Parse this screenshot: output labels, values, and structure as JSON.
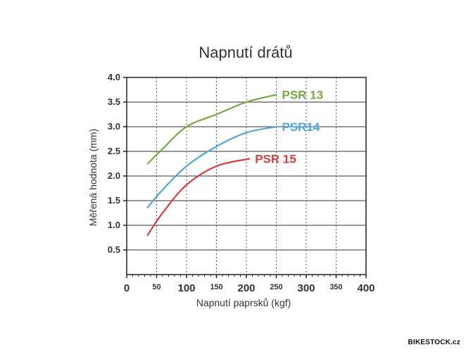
{
  "chart_data": {
    "type": "line",
    "title": "Napnutí drátů",
    "xlabel": "Napnutí paprsků (kgf)",
    "ylabel": "Měřená hodnota (mm)",
    "xlim": [
      0,
      400
    ],
    "ylim": [
      0,
      4.0
    ],
    "x_ticks": [
      0,
      50,
      100,
      150,
      200,
      250,
      300,
      350,
      400
    ],
    "x_tick_labels": [
      "0",
      "50",
      "100",
      "150",
      "200",
      "250",
      "300",
      "350",
      "400"
    ],
    "y_ticks": [
      0.5,
      1.0,
      1.5,
      2.0,
      2.5,
      3.0,
      3.5,
      4.0
    ],
    "y_tick_labels": [
      "0.5",
      "1.0",
      "1.5",
      "2.0",
      "2.5",
      "3.0",
      "3.5",
      "4.0"
    ],
    "grid": "dashed vertical every 50, solid horizontal every 0.5",
    "series": [
      {
        "name": "PSR 13",
        "color": "#73a93e",
        "x": [
          35,
          60,
          100,
          150,
          200,
          250
        ],
        "y": [
          2.25,
          2.55,
          3.0,
          3.25,
          3.5,
          3.65
        ]
      },
      {
        "name": "PSR14",
        "color": "#4fa7db",
        "x": [
          35,
          60,
          100,
          150,
          200,
          250
        ],
        "y": [
          1.36,
          1.72,
          2.2,
          2.6,
          2.88,
          3.0
        ]
      },
      {
        "name": "PSR 15",
        "color": "#d93c3c",
        "x": [
          35,
          60,
          100,
          150,
          205
        ],
        "y": [
          0.8,
          1.25,
          1.82,
          2.2,
          2.35
        ]
      }
    ]
  },
  "watermark": "BIKESTOCK.cz"
}
